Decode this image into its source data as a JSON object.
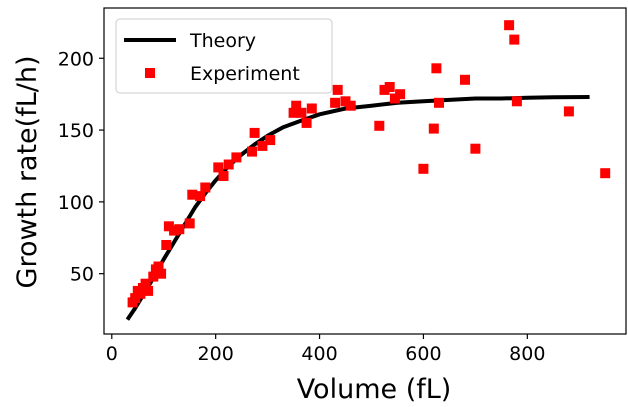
{
  "chart_data": {
    "type": "scatter",
    "xlabel": "Volume (fL)",
    "ylabel": "Growth rate(fL/h)",
    "xlim": [
      -15,
      990
    ],
    "ylim": [
      8,
      235
    ],
    "xticks": [
      0,
      200,
      400,
      600,
      800
    ],
    "yticks": [
      50,
      100,
      150,
      200
    ],
    "grid": false,
    "legend": {
      "placement": "top-left",
      "entries": [
        {
          "label": "Theory",
          "kind": "line",
          "color": "#000000"
        },
        {
          "label": "Experiment",
          "kind": "square",
          "color": "#ff0000"
        }
      ]
    },
    "series": [
      {
        "name": "Theory",
        "type": "line",
        "color": "#000000",
        "x": [
          30,
          45,
          60,
          80,
          100,
          120,
          140,
          160,
          180,
          200,
          225,
          250,
          275,
          300,
          330,
          360,
          400,
          450,
          500,
          550,
          600,
          650,
          700,
          750,
          800,
          850,
          920
        ],
        "y": [
          18,
          26,
          35,
          47,
          60,
          72,
          84,
          96,
          106,
          115,
          125,
          133,
          140,
          146,
          152,
          156,
          161,
          165,
          167,
          169,
          170,
          171,
          172,
          172,
          172.5,
          172.8,
          173
        ]
      },
      {
        "name": "Experiment",
        "type": "scatter",
        "color": "#ff0000",
        "x": [
          40,
          45,
          50,
          55,
          60,
          65,
          70,
          80,
          85,
          90,
          95,
          105,
          110,
          120,
          130,
          150,
          155,
          170,
          180,
          205,
          215,
          225,
          240,
          270,
          275,
          290,
          305,
          350,
          355,
          365,
          375,
          385,
          430,
          435,
          450,
          460,
          515,
          525,
          535,
          545,
          555,
          600,
          620,
          625,
          630,
          680,
          700,
          765,
          775,
          780,
          880,
          950
        ],
        "y": [
          30,
          33,
          38,
          36,
          40,
          43,
          38,
          48,
          53,
          55,
          50,
          70,
          83,
          80,
          81,
          85,
          105,
          104,
          110,
          124,
          118,
          126,
          131,
          135,
          148,
          139,
          143,
          162,
          167,
          162,
          155,
          165,
          169,
          178,
          170,
          167,
          153,
          178,
          180,
          172,
          175,
          123,
          151,
          193,
          169,
          185,
          137,
          223,
          213,
          170,
          163,
          120
        ]
      }
    ]
  }
}
